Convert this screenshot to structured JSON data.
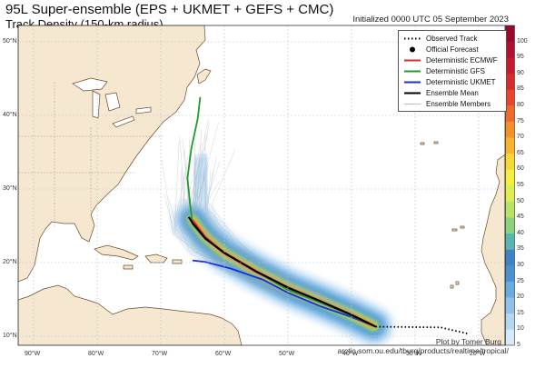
{
  "title": "95L Super-ensemble (EPS + UKMET + GEFS + CMC)",
  "subtitle": "Track Density (150-km radius)",
  "initialized": "Initialized 0000 UTC 05 September 2023",
  "legend": [
    {
      "label": "Observed Track",
      "icon": "dotted-line"
    },
    {
      "label": "Official Forecast",
      "icon": "filled-circle"
    },
    {
      "label": "Deterministic ECMWF",
      "icon": "line",
      "color": "#e8262b"
    },
    {
      "label": "Deterministic GFS",
      "icon": "line",
      "color": "#1f9b2a"
    },
    {
      "label": "Deterministic UKMET",
      "icon": "line",
      "color": "#1a2fd6"
    },
    {
      "label": "Ensemble Mean",
      "icon": "line",
      "color": "#000000"
    },
    {
      "label": "Ensemble Members",
      "icon": "thin-line",
      "color": "#9aa9b8"
    }
  ],
  "credit_line1": "Plot by Tomer Burg",
  "credit_line2": "arctic.som.ou.edu/tburg/products/realtime/tropical/",
  "lat_ticks": [
    "10°N",
    "20°N",
    "30°N",
    "40°N",
    "50°N"
  ],
  "lon_ticks": [
    "90°W",
    "80°W",
    "70°W",
    "60°W",
    "50°W",
    "40°W",
    "30°W",
    "20°W"
  ],
  "colorbar": {
    "labels": [
      "5",
      "10",
      "15",
      "20",
      "25",
      "30",
      "35",
      "40",
      "45",
      "50",
      "55",
      "60",
      "65",
      "70",
      "75",
      "80",
      "85",
      "90",
      "95",
      "100"
    ],
    "colors": [
      "#d6e9f8",
      "#b4d7f1",
      "#8ec2ea",
      "#68abe0",
      "#4992cf",
      "#3f83c2",
      "#58b6b0",
      "#8cd27c",
      "#b8e365",
      "#dcef4f",
      "#f6ee3c",
      "#f8d735",
      "#f7b52e",
      "#f48f2a",
      "#ef6a2a",
      "#e8462a",
      "#d92b2d",
      "#c51a30",
      "#b0112f",
      "#98092c"
    ]
  },
  "colors": {
    "ocean": "#ffffff",
    "land": "#f6e7d1",
    "coast": "#6b4a2b",
    "grid": "#b9c7d9"
  },
  "tracks": {
    "observed": [
      [
        -26.0,
        11.2
      ],
      [
        -24.5,
        10.9
      ],
      [
        -23.0,
        10.6
      ],
      [
        -21.5,
        10.3
      ]
    ],
    "gfs": [
      [
        -36.2,
        11.3
      ],
      [
        -40,
        12.8
      ],
      [
        -45,
        14.6
      ],
      [
        -50,
        16.3
      ],
      [
        -55,
        18.8
      ],
      [
        -60,
        21.4
      ],
      [
        -63,
        23.2
      ],
      [
        -65,
        25.2
      ],
      [
        -65.4,
        28
      ],
      [
        -65.8,
        31.5
      ],
      [
        -65.2,
        35.5
      ],
      [
        -64.2,
        39.5
      ],
      [
        -63.8,
        42.5
      ]
    ],
    "ukmet": [
      [
        -36.2,
        11.3
      ],
      [
        -40,
        12.6
      ],
      [
        -45,
        14.1
      ],
      [
        -50,
        15.9
      ],
      [
        -54,
        17.7
      ],
      [
        -59,
        19.2
      ],
      [
        -63,
        20.1
      ],
      [
        -65,
        20.3
      ]
    ],
    "ecmwf": [
      [
        -36.2,
        11.3
      ],
      [
        -40,
        12.8
      ],
      [
        -45,
        14.7
      ],
      [
        -50,
        16.5
      ],
      [
        -55,
        18.7
      ],
      [
        -60,
        21.3
      ],
      [
        -63,
        23.5
      ],
      [
        -65,
        25.8
      ]
    ],
    "mean": [
      [
        -36.2,
        11.3
      ],
      [
        -40,
        12.9
      ],
      [
        -45,
        14.8
      ],
      [
        -50,
        16.6
      ],
      [
        -55,
        18.8
      ],
      [
        -60,
        21.3
      ],
      [
        -63,
        23.3
      ],
      [
        -65,
        25.4
      ],
      [
        -65.6,
        26.2
      ]
    ]
  },
  "density_core": [
    [
      -36.5,
      11.4
    ],
    [
      -40,
      12.9
    ],
    [
      -45,
      14.8
    ],
    [
      -50,
      16.6
    ],
    [
      -55,
      18.8
    ],
    [
      -60,
      21.3
    ],
    [
      -63,
      23.5
    ],
    [
      -65,
      25.8
    ]
  ]
}
